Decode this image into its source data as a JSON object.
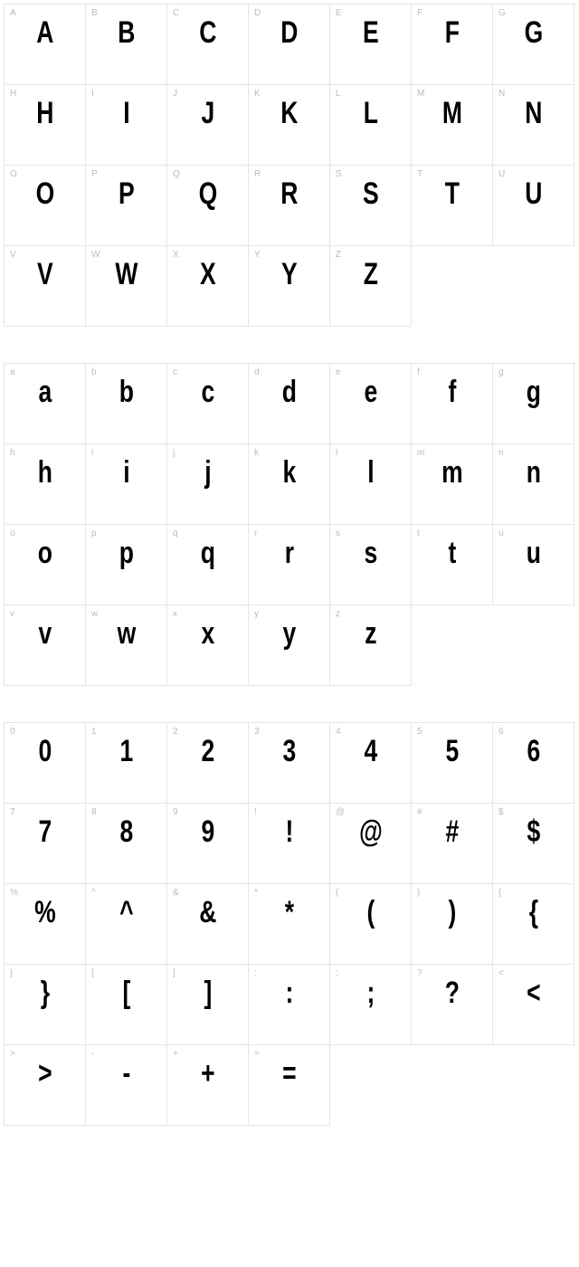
{
  "styling": {
    "cell_size": {
      "width": 90,
      "height": 88
    },
    "columns": 7,
    "border_color": "#e5e5e5",
    "background_color": "#ffffff",
    "label_color": "#bbbbbb",
    "label_fontsize": 10,
    "glyph_color": "#000000",
    "glyph_fontsize": 34,
    "glyph_weight": 900,
    "glyph_scale_x": 0.78,
    "section_gap": 40
  },
  "sections": [
    {
      "name": "uppercase",
      "cells": [
        {
          "label": "A",
          "glyph": "A"
        },
        {
          "label": "B",
          "glyph": "B"
        },
        {
          "label": "C",
          "glyph": "C"
        },
        {
          "label": "D",
          "glyph": "D"
        },
        {
          "label": "E",
          "glyph": "E"
        },
        {
          "label": "F",
          "glyph": "F"
        },
        {
          "label": "G",
          "glyph": "G"
        },
        {
          "label": "H",
          "glyph": "H"
        },
        {
          "label": "I",
          "glyph": "I"
        },
        {
          "label": "J",
          "glyph": "J"
        },
        {
          "label": "K",
          "glyph": "K"
        },
        {
          "label": "L",
          "glyph": "L"
        },
        {
          "label": "M",
          "glyph": "M"
        },
        {
          "label": "N",
          "glyph": "N"
        },
        {
          "label": "O",
          "glyph": "O"
        },
        {
          "label": "P",
          "glyph": "P"
        },
        {
          "label": "Q",
          "glyph": "Q"
        },
        {
          "label": "R",
          "glyph": "R"
        },
        {
          "label": "S",
          "glyph": "S"
        },
        {
          "label": "T",
          "glyph": "T"
        },
        {
          "label": "U",
          "glyph": "U"
        },
        {
          "label": "V",
          "glyph": "V"
        },
        {
          "label": "W",
          "glyph": "W"
        },
        {
          "label": "X",
          "glyph": "X"
        },
        {
          "label": "Y",
          "glyph": "Y"
        },
        {
          "label": "Z",
          "glyph": "Z"
        }
      ]
    },
    {
      "name": "lowercase",
      "cells": [
        {
          "label": "a",
          "glyph": "a"
        },
        {
          "label": "b",
          "glyph": "b"
        },
        {
          "label": "c",
          "glyph": "c"
        },
        {
          "label": "d",
          "glyph": "d"
        },
        {
          "label": "e",
          "glyph": "e"
        },
        {
          "label": "f",
          "glyph": "f"
        },
        {
          "label": "g",
          "glyph": "g"
        },
        {
          "label": "h",
          "glyph": "h"
        },
        {
          "label": "i",
          "glyph": "i"
        },
        {
          "label": "j",
          "glyph": "j"
        },
        {
          "label": "k",
          "glyph": "k"
        },
        {
          "label": "l",
          "glyph": "l"
        },
        {
          "label": "m",
          "glyph": "m"
        },
        {
          "label": "n",
          "glyph": "n"
        },
        {
          "label": "o",
          "glyph": "o"
        },
        {
          "label": "p",
          "glyph": "p"
        },
        {
          "label": "q",
          "glyph": "q"
        },
        {
          "label": "r",
          "glyph": "r"
        },
        {
          "label": "s",
          "glyph": "s"
        },
        {
          "label": "t",
          "glyph": "t"
        },
        {
          "label": "u",
          "glyph": "u"
        },
        {
          "label": "v",
          "glyph": "v"
        },
        {
          "label": "w",
          "glyph": "w"
        },
        {
          "label": "x",
          "glyph": "x"
        },
        {
          "label": "y",
          "glyph": "y"
        },
        {
          "label": "z",
          "glyph": "z"
        }
      ]
    },
    {
      "name": "numerals-symbols",
      "cells": [
        {
          "label": "0",
          "glyph": "0"
        },
        {
          "label": "1",
          "glyph": "1"
        },
        {
          "label": "2",
          "glyph": "2"
        },
        {
          "label": "3",
          "glyph": "3"
        },
        {
          "label": "4",
          "glyph": "4"
        },
        {
          "label": "5",
          "glyph": "5"
        },
        {
          "label": "6",
          "glyph": "6"
        },
        {
          "label": "7",
          "glyph": "7"
        },
        {
          "label": "8",
          "glyph": "8"
        },
        {
          "label": "9",
          "glyph": "9"
        },
        {
          "label": "!",
          "glyph": "!"
        },
        {
          "label": "@",
          "glyph": "@"
        },
        {
          "label": "#",
          "glyph": "#"
        },
        {
          "label": "$",
          "glyph": "$"
        },
        {
          "label": "%",
          "glyph": "%"
        },
        {
          "label": "^",
          "glyph": "^"
        },
        {
          "label": "&",
          "glyph": "&"
        },
        {
          "label": "*",
          "glyph": "*"
        },
        {
          "label": "(",
          "glyph": "("
        },
        {
          "label": ")",
          "glyph": ")"
        },
        {
          "label": "{",
          "glyph": "{"
        },
        {
          "label": "}",
          "glyph": "}"
        },
        {
          "label": "[",
          "glyph": "["
        },
        {
          "label": "]",
          "glyph": "]"
        },
        {
          "label": ":",
          "glyph": ":"
        },
        {
          "label": ";",
          "glyph": ";"
        },
        {
          "label": "?",
          "glyph": "?"
        },
        {
          "label": "<",
          "glyph": "<"
        },
        {
          "label": ">",
          "glyph": ">"
        },
        {
          "label": "-",
          "glyph": "-"
        },
        {
          "label": "+",
          "glyph": "+"
        },
        {
          "label": "=",
          "glyph": "="
        }
      ]
    }
  ]
}
